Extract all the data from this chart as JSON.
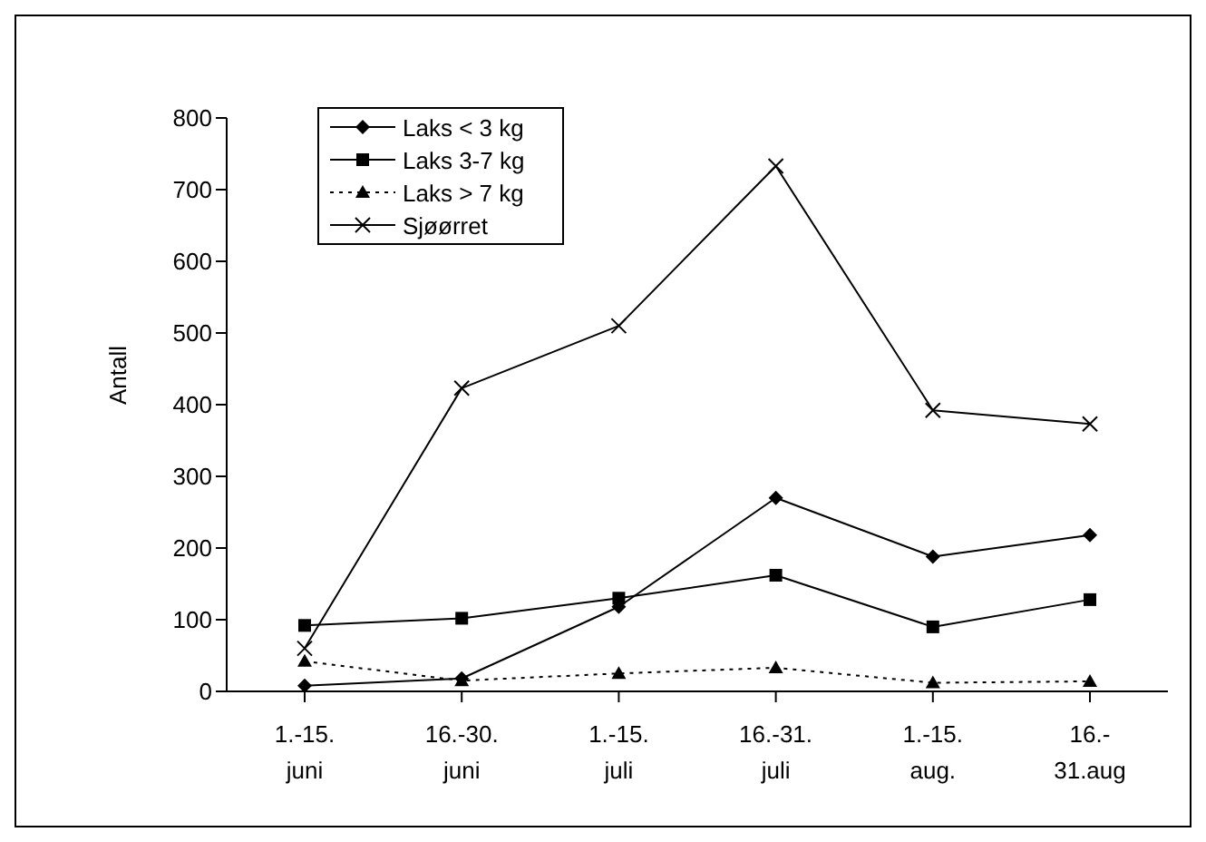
{
  "chart_data": {
    "type": "line",
    "ylabel": "Antall",
    "categories": [
      "1.-15.\njuni",
      "16.-30.\njuni",
      "1.-15.\njuli",
      "16.-31.\njuli",
      "1.-15.\naug.",
      "16.-\n31.aug"
    ],
    "ylim": [
      0,
      800
    ],
    "yticks": [
      0,
      100,
      200,
      300,
      400,
      500,
      600,
      700,
      800
    ],
    "grid": false,
    "legend": "top left",
    "series": [
      {
        "name": "Laks < 3 kg",
        "color": "#000000",
        "marker": "diamond",
        "line_style": "solid",
        "values": [
          8,
          18,
          118,
          270,
          188,
          218
        ]
      },
      {
        "name": "Laks 3-7 kg",
        "color": "#000000",
        "marker": "square",
        "line_style": "solid",
        "values": [
          92,
          102,
          130,
          162,
          90,
          128
        ]
      },
      {
        "name": "Laks > 7 kg",
        "color": "#000000",
        "marker": "triangle",
        "line_style": "dotted",
        "values": [
          42,
          15,
          25,
          33,
          12,
          14
        ]
      },
      {
        "name": "Sjøørret",
        "color": "#000000",
        "marker": "cross",
        "line_style": "solid",
        "values": [
          60,
          423,
          510,
          733,
          392,
          373
        ]
      }
    ]
  }
}
